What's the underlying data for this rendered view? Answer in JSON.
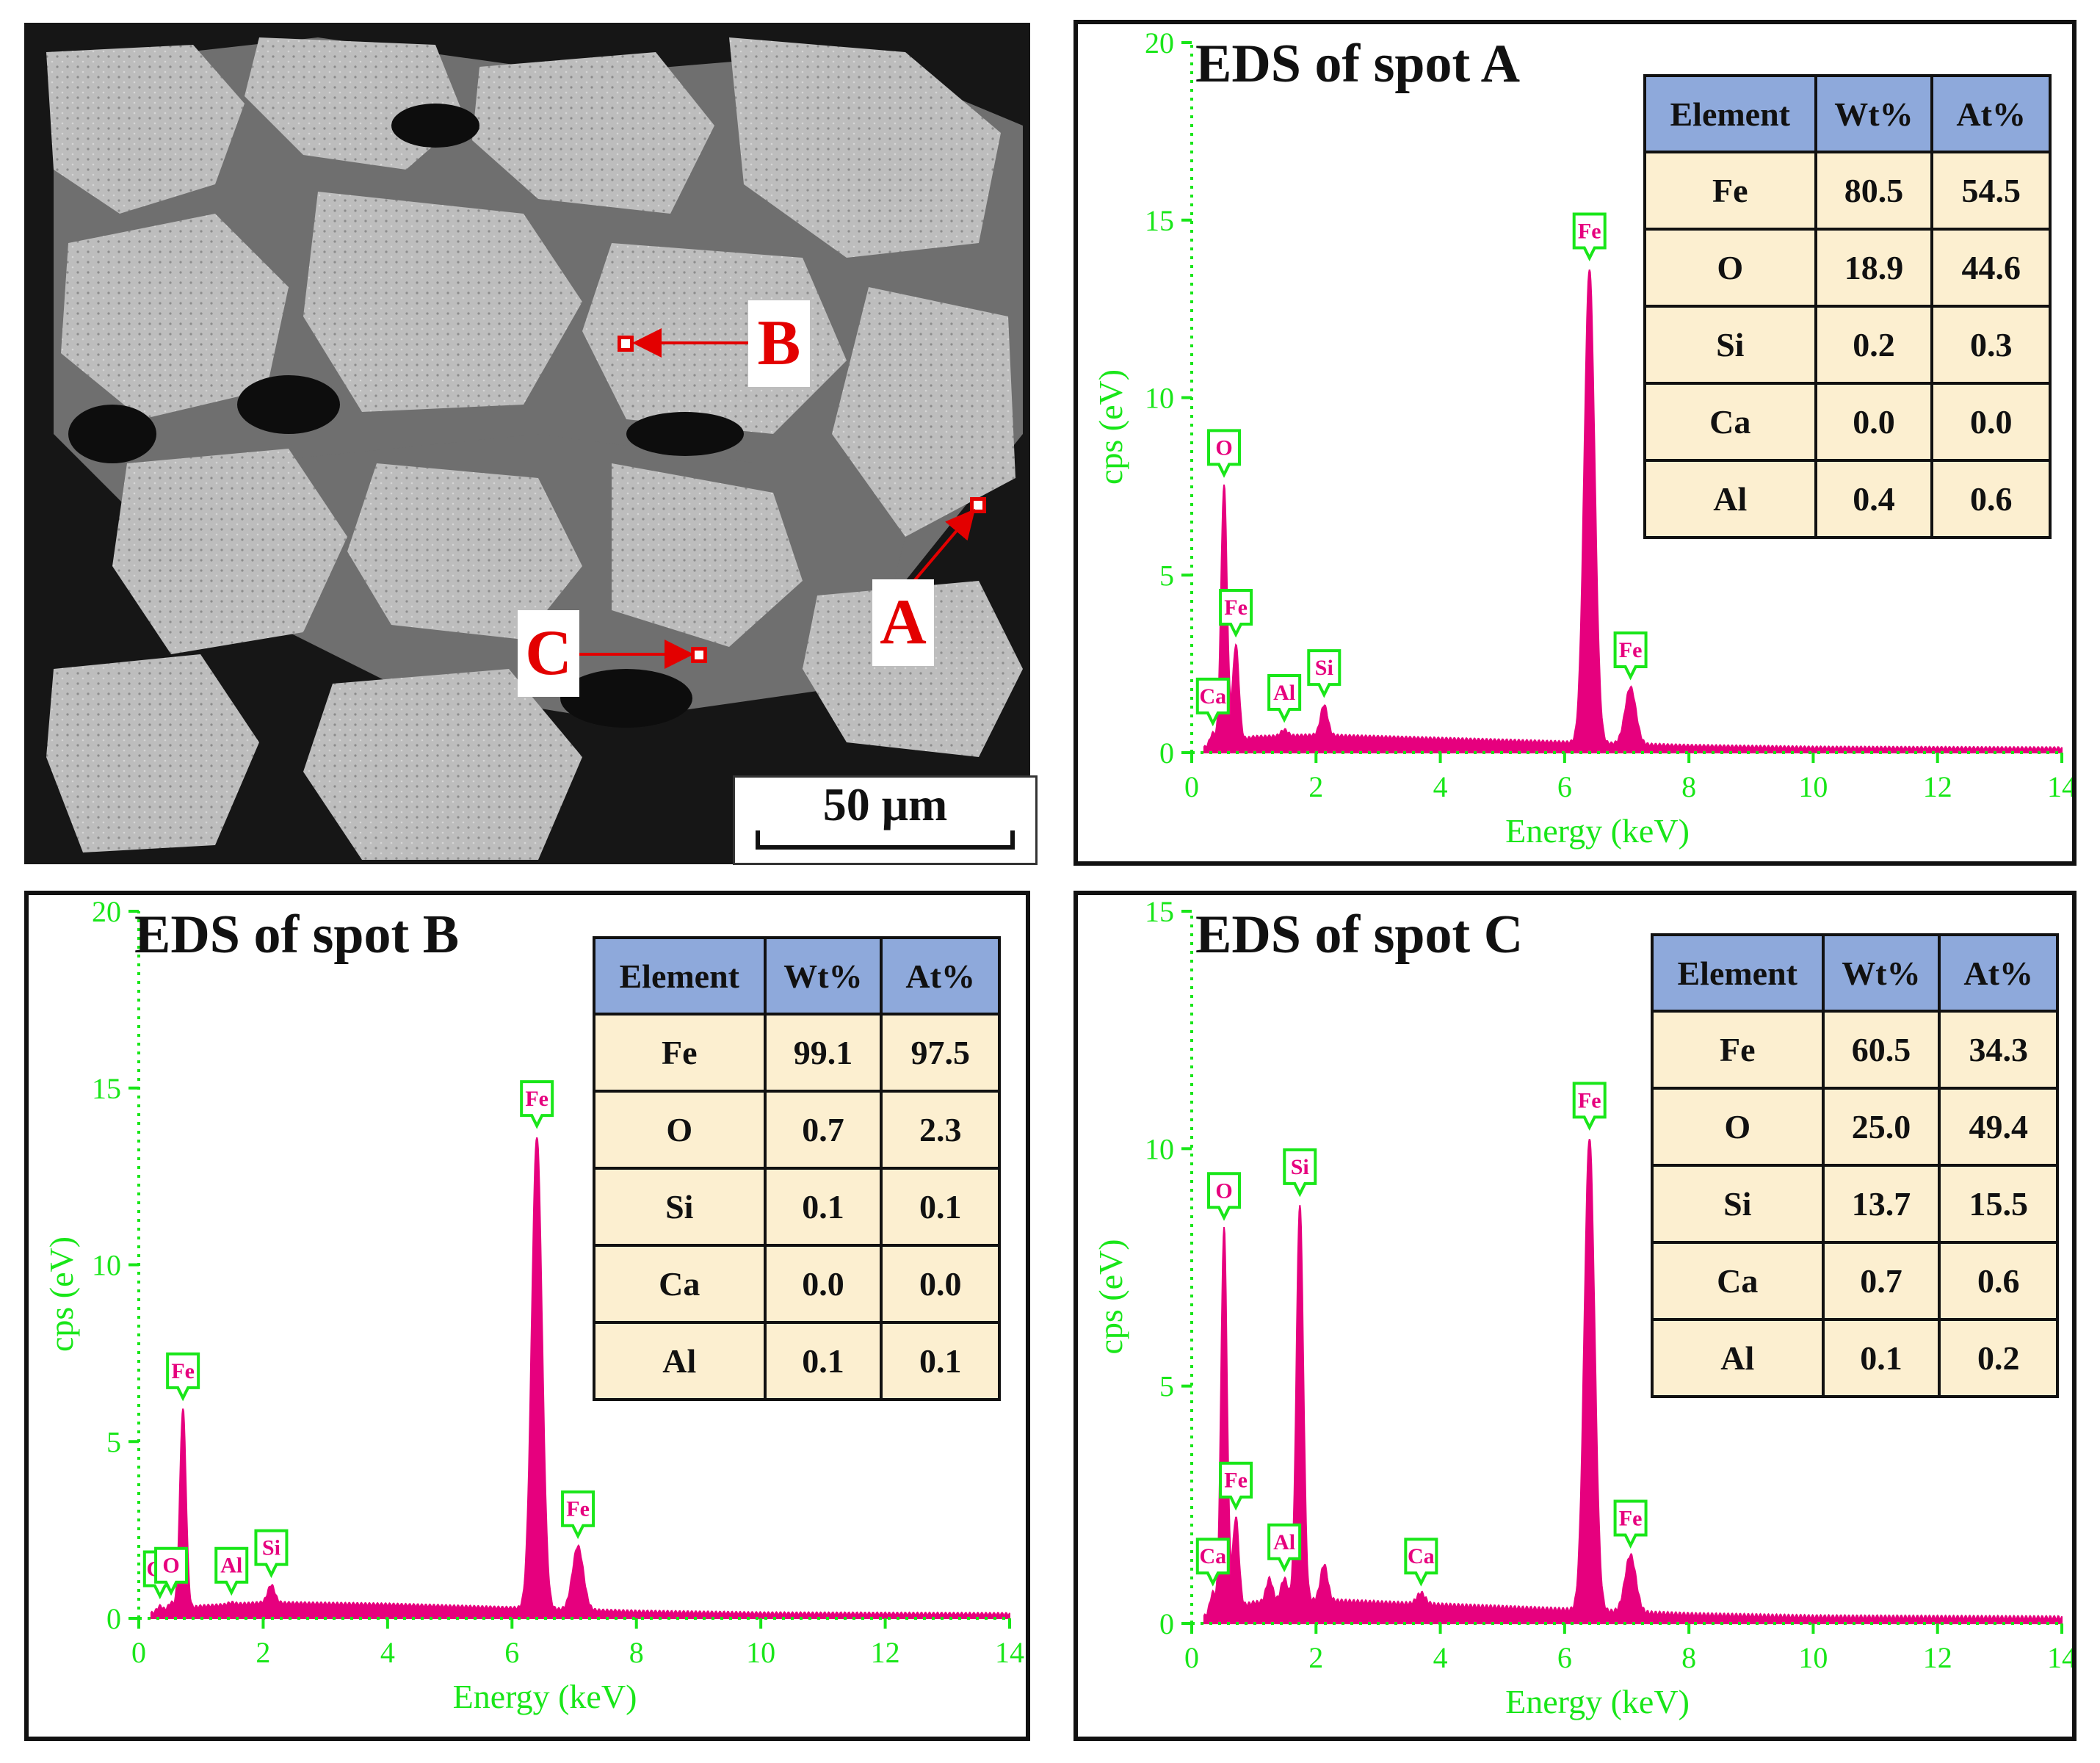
{
  "colors": {
    "axis": "#19e619",
    "spectrum": "#e6007e",
    "label_text": "#e6007e",
    "label_border": "#19e619",
    "table_header": "#8ea9db",
    "table_body": "#fcefd0",
    "marker": "#e30000"
  },
  "sem": {
    "scale_label": "50 μm",
    "spots": [
      {
        "name": "A"
      },
      {
        "name": "B"
      },
      {
        "name": "C"
      }
    ]
  },
  "table_headers": [
    "Element",
    "Wt%",
    "At%"
  ],
  "panels": [
    {
      "id": "A",
      "title": "EDS of spot A",
      "rows": [
        [
          "Fe",
          "80.5",
          "54.5"
        ],
        [
          "O",
          "18.9",
          "44.6"
        ],
        [
          "Si",
          "0.2",
          "0.3"
        ],
        [
          "Ca",
          "0.0",
          "0.0"
        ],
        [
          "Al",
          "0.4",
          "0.6"
        ]
      ]
    },
    {
      "id": "B",
      "title": "EDS of spot B",
      "rows": [
        [
          "Fe",
          "99.1",
          "97.5"
        ],
        [
          "O",
          "0.7",
          "2.3"
        ],
        [
          "Si",
          "0.1",
          "0.1"
        ],
        [
          "Ca",
          "0.0",
          "0.0"
        ],
        [
          "Al",
          "0.1",
          "0.1"
        ]
      ]
    },
    {
      "id": "C",
      "title": "EDS of spot C",
      "rows": [
        [
          "Fe",
          "60.5",
          "34.3"
        ],
        [
          "O",
          "25.0",
          "49.4"
        ],
        [
          "Si",
          "13.7",
          "15.5"
        ],
        [
          "Ca",
          "0.7",
          "0.6"
        ],
        [
          "Al",
          "0.1",
          "0.2"
        ]
      ]
    }
  ],
  "chart_data": [
    {
      "type": "line",
      "title": "EDS of spot A",
      "xlabel": "Energy (keV)",
      "ylabel": "cps (eV)",
      "xlim": [
        0,
        14
      ],
      "ylim": [
        0,
        20
      ],
      "xticks": [
        "0",
        "2",
        "4",
        "6",
        "8",
        "10",
        "12",
        "14"
      ],
      "yticks": [
        "0",
        "5",
        "10",
        "15",
        "20"
      ],
      "peaks": [
        {
          "label": "Ca",
          "x": 0.34,
          "y": 0.5
        },
        {
          "label": "O",
          "x": 0.52,
          "y": 7.5
        },
        {
          "label": "Fe",
          "x": 0.71,
          "y": 3.0
        },
        {
          "label": "Al",
          "x": 1.49,
          "y": 0.6
        },
        {
          "label": "Si",
          "x": 2.13,
          "y": 1.3
        },
        {
          "label": "Fe",
          "x": 6.4,
          "y": 13.6
        },
        {
          "label": "Fe",
          "x": 7.06,
          "y": 1.8
        }
      ],
      "background": [
        [
          0.2,
          0.1
        ],
        [
          1.0,
          0.4
        ],
        [
          2.0,
          0.45
        ],
        [
          4.0,
          0.35
        ],
        [
          6.0,
          0.25
        ],
        [
          8.0,
          0.15
        ],
        [
          10.0,
          0.1
        ],
        [
          14.0,
          0.08
        ]
      ]
    },
    {
      "type": "line",
      "title": "EDS of spot B",
      "xlabel": "Energy (keV)",
      "ylabel": "cps (eV)",
      "xlim": [
        0,
        14
      ],
      "ylim": [
        0,
        20
      ],
      "xticks": [
        "0",
        "2",
        "4",
        "6",
        "8",
        "10",
        "12",
        "14"
      ],
      "yticks": [
        "0",
        "5",
        "10",
        "15",
        "20"
      ],
      "peaks": [
        {
          "label": "Ca",
          "x": 0.34,
          "y": 0.3
        },
        {
          "label": "O",
          "x": 0.52,
          "y": 0.4
        },
        {
          "label": "Fe",
          "x": 0.71,
          "y": 5.9
        },
        {
          "label": "Al",
          "x": 1.49,
          "y": 0.4
        },
        {
          "label": "Si",
          "x": 2.13,
          "y": 0.9
        },
        {
          "label": "Fe",
          "x": 6.4,
          "y": 13.6
        },
        {
          "label": "Fe",
          "x": 7.06,
          "y": 2.0
        }
      ],
      "background": [
        [
          0.2,
          0.1
        ],
        [
          1.0,
          0.3
        ],
        [
          2.0,
          0.4
        ],
        [
          4.0,
          0.35
        ],
        [
          6.0,
          0.25
        ],
        [
          8.0,
          0.15
        ],
        [
          10.0,
          0.1
        ],
        [
          14.0,
          0.08
        ]
      ]
    },
    {
      "type": "line",
      "title": "EDS of spot C",
      "xlabel": "Energy (keV)",
      "ylabel": "cps (eV)",
      "xlim": [
        0,
        14
      ],
      "ylim": [
        0,
        15
      ],
      "xticks": [
        "0",
        "2",
        "4",
        "6",
        "8",
        "10",
        "12",
        "14"
      ],
      "yticks": [
        "0",
        "5",
        "10",
        "15"
      ],
      "peaks": [
        {
          "label": "Ca",
          "x": 0.34,
          "y": 0.6
        },
        {
          "label": "O",
          "x": 0.52,
          "y": 8.3
        },
        {
          "label": "Fe",
          "x": 0.71,
          "y": 2.2
        },
        {
          "label": "Al",
          "x": 1.49,
          "y": 0.9
        },
        {
          "label": "Si",
          "x": 1.74,
          "y": 8.8
        },
        {
          "label": "Ca",
          "x": 3.69,
          "y": 0.6
        },
        {
          "label": "Fe",
          "x": 6.4,
          "y": 10.2
        },
        {
          "label": "Fe",
          "x": 7.06,
          "y": 1.4
        }
      ],
      "extra_peaks": [
        {
          "x": 1.25,
          "y": 0.9
        },
        {
          "x": 2.13,
          "y": 1.2
        }
      ],
      "background": [
        [
          0.2,
          0.1
        ],
        [
          1.0,
          0.4
        ],
        [
          2.0,
          0.45
        ],
        [
          4.0,
          0.35
        ],
        [
          6.0,
          0.25
        ],
        [
          8.0,
          0.15
        ],
        [
          10.0,
          0.1
        ],
        [
          14.0,
          0.08
        ]
      ]
    }
  ]
}
